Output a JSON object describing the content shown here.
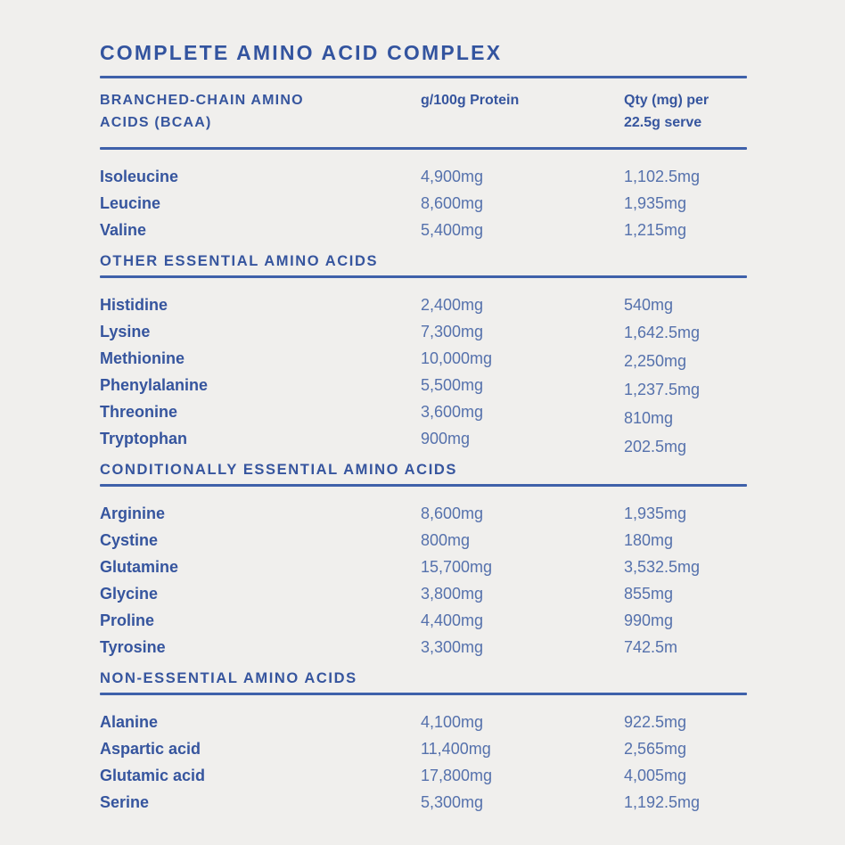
{
  "title": "COMPLETE AMINO ACID COMPLEX",
  "columns": {
    "col1": "BRANCHED-CHAIN AMINO ACIDS (BCAA)",
    "col2": "g/100g Protein",
    "col3": "Qty (mg) per 22.5g serve"
  },
  "sections": [
    {
      "id": "bcaa",
      "heading": "",
      "rows": [
        {
          "name": "Isoleucine",
          "per_100g": "4,900mg",
          "per_serve": "1,102.5mg"
        },
        {
          "name": "Leucine",
          "per_100g": "8,600mg",
          "per_serve": "1,935mg"
        },
        {
          "name": "Valine",
          "per_100g": "5,400mg",
          "per_serve": "1,215mg"
        }
      ]
    },
    {
      "id": "other-essential",
      "heading": "OTHER ESSENTIAL AMINO ACIDS",
      "rows": [
        {
          "name": "Histidine",
          "per_100g": "2,400mg",
          "per_serve": "540mg"
        },
        {
          "name": "Lysine",
          "per_100g": "7,300mg",
          "per_serve": "1,642.5mg"
        },
        {
          "name": "Methionine",
          "per_100g": "10,000mg",
          "per_serve": "2,250mg"
        },
        {
          "name": "Phenylalanine",
          "per_100g": "5,500mg",
          "per_serve": "1,237.5mg"
        },
        {
          "name": "Threonine",
          "per_100g": "3,600mg",
          "per_serve": "810mg"
        },
        {
          "name": "Tryptophan",
          "per_100g": "900mg",
          "per_serve": "202.5mg"
        }
      ]
    },
    {
      "id": "conditionally-essential",
      "heading": "CONDITIONALLY ESSENTIAL AMINO ACIDS",
      "rows": [
        {
          "name": "Arginine",
          "per_100g": "8,600mg",
          "per_serve": "1,935mg"
        },
        {
          "name": "Cystine",
          "per_100g": "800mg",
          "per_serve": "180mg"
        },
        {
          "name": "Glutamine",
          "per_100g": "15,700mg",
          "per_serve": "3,532.5mg"
        },
        {
          "name": "Glycine",
          "per_100g": "3,800mg",
          "per_serve": "855mg"
        },
        {
          "name": "Proline",
          "per_100g": "4,400mg",
          "per_serve": "990mg"
        },
        {
          "name": "Tyrosine",
          "per_100g": "3,300mg",
          "per_serve": "742.5m"
        }
      ]
    },
    {
      "id": "non-essential",
      "heading": "NON-ESSENTIAL AMINO ACIDS",
      "rows": [
        {
          "name": "Alanine",
          "per_100g": "4,100mg",
          "per_serve": "922.5mg"
        },
        {
          "name": "Aspartic acid",
          "per_100g": "11,400mg",
          "per_serve": "2,565mg"
        },
        {
          "name": "Glutamic acid",
          "per_100g": "17,800mg",
          "per_serve": "4,005mg"
        },
        {
          "name": "Serine",
          "per_100g": "5,300mg",
          "per_serve": "1,192.5mg"
        }
      ]
    }
  ],
  "colors": {
    "background": "#f0efed",
    "title": "#33549f",
    "text_dark": "#36559e",
    "text_value": "#5571ac",
    "rule": "#3f61aa"
  }
}
